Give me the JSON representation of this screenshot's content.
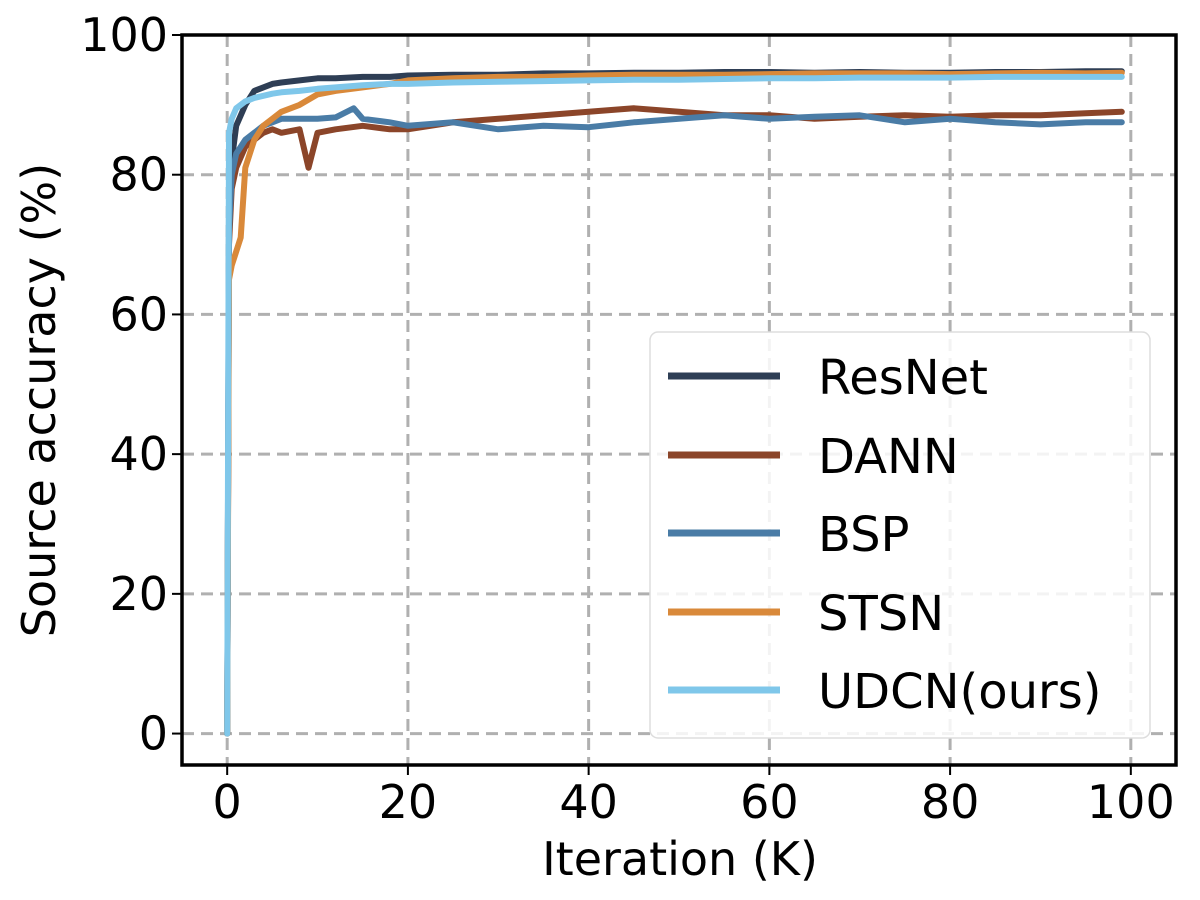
{
  "chart_data": {
    "type": "line",
    "xlabel": "Iteration (K)",
    "ylabel": "Source accuracy (%)",
    "xlim": [
      -5,
      105
    ],
    "ylim": [
      -4.5,
      100
    ],
    "xticks": [
      0,
      20,
      40,
      60,
      80,
      100
    ],
    "yticks": [
      0,
      20,
      40,
      60,
      80,
      100
    ],
    "grid": true,
    "legend_position": "lower-right",
    "series": [
      {
        "name": "ResNet",
        "color": "#2e3e55",
        "x": [
          0,
          0.2,
          0.5,
          1,
          2,
          3,
          4,
          5,
          6,
          8,
          10,
          12,
          15,
          18,
          20,
          25,
          30,
          35,
          40,
          45,
          50,
          55,
          60,
          65,
          70,
          75,
          80,
          85,
          90,
          95,
          99
        ],
        "y": [
          0,
          75,
          82,
          87,
          90,
          92,
          92.5,
          93,
          93.2,
          93.5,
          93.8,
          93.8,
          94,
          94,
          94.2,
          94.3,
          94.3,
          94.5,
          94.5,
          94.6,
          94.6,
          94.7,
          94.7,
          94.6,
          94.7,
          94.6,
          94.6,
          94.7,
          94.7,
          94.8,
          94.8
        ]
      },
      {
        "name": "DANN",
        "color": "#8b4529",
        "x": [
          0,
          0.2,
          0.5,
          1,
          2,
          3,
          4,
          5,
          6,
          8,
          9,
          10,
          12,
          15,
          18,
          20,
          25,
          30,
          35,
          40,
          45,
          50,
          55,
          60,
          65,
          70,
          75,
          80,
          85,
          90,
          95,
          99
        ],
        "y": [
          0,
          70,
          78,
          81,
          84,
          85,
          86,
          86.5,
          86,
          86.5,
          81,
          86,
          86.5,
          87,
          86.5,
          86.5,
          87.5,
          88,
          88.5,
          89,
          89.5,
          89,
          88.5,
          88.5,
          88,
          88.3,
          88.5,
          88.3,
          88.5,
          88.5,
          88.8,
          89
        ]
      },
      {
        "name": "BSP",
        "color": "#4a7ca6",
        "x": [
          0,
          0.2,
          0.5,
          1,
          2,
          3,
          4,
          5,
          6,
          8,
          10,
          12,
          14,
          15,
          18,
          20,
          25,
          30,
          35,
          40,
          45,
          50,
          55,
          60,
          65,
          70,
          75,
          80,
          85,
          90,
          95,
          99
        ],
        "y": [
          0,
          72,
          80,
          83,
          85,
          86,
          87,
          87.5,
          88,
          88,
          88,
          88.2,
          89.5,
          88,
          87.5,
          87,
          87.5,
          86.5,
          87,
          86.8,
          87.5,
          88,
          88.5,
          88,
          88.3,
          88.5,
          87.5,
          88,
          87.5,
          87.2,
          87.5,
          87.5
        ]
      },
      {
        "name": "STSN",
        "color": "#d9893a",
        "x": [
          0,
          0.2,
          0.5,
          1,
          1.5,
          2,
          3,
          4,
          5,
          6,
          8,
          10,
          12,
          15,
          18,
          20,
          25,
          30,
          35,
          40,
          45,
          50,
          55,
          60,
          65,
          70,
          75,
          80,
          85,
          90,
          95,
          99
        ],
        "y": [
          0,
          65,
          67,
          69,
          71,
          81,
          85,
          87,
          88,
          89,
          90,
          91.5,
          92,
          92.5,
          93,
          93.5,
          93.8,
          94,
          94,
          94.2,
          94.3,
          94.3,
          94.3,
          94.4,
          94.5,
          94.5,
          94.5,
          94.4,
          94.5,
          94.6,
          94.5,
          94.6
        ]
      },
      {
        "name": "UDCN(ours)",
        "color": "#7fc7ea",
        "x": [
          0,
          0.2,
          0.5,
          1,
          2,
          3,
          4,
          5,
          6,
          8,
          10,
          12,
          15,
          18,
          20,
          25,
          30,
          35,
          40,
          45,
          50,
          55,
          60,
          65,
          70,
          75,
          80,
          85,
          90,
          95,
          99
        ],
        "y": [
          0,
          86,
          88,
          89.5,
          90.5,
          91,
          91.3,
          91.6,
          91.8,
          92,
          92.3,
          92.5,
          92.8,
          93,
          93,
          93.2,
          93.3,
          93.4,
          93.5,
          93.6,
          93.6,
          93.7,
          93.8,
          93.8,
          93.9,
          93.9,
          93.9,
          94,
          94,
          94,
          94
        ]
      }
    ]
  }
}
